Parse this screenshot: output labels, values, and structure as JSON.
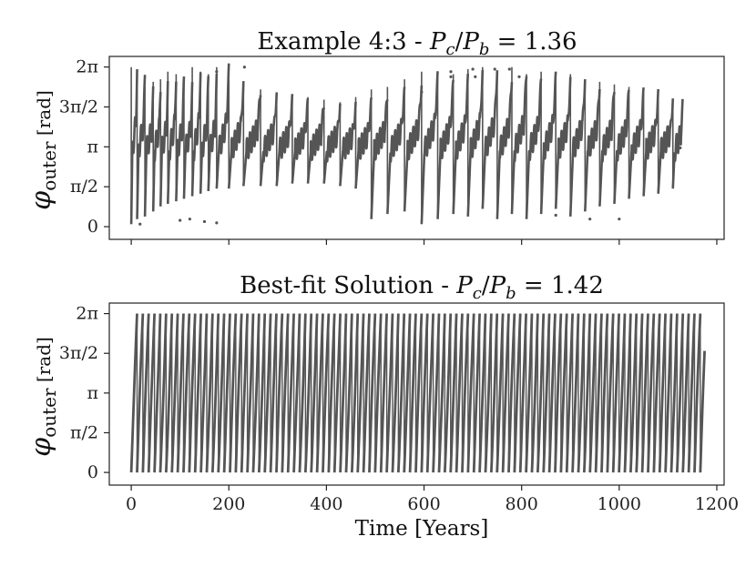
{
  "chart_data": [
    {
      "type": "scatter",
      "title_text": "Example 4:3 - ",
      "title_math": "P_c/P_b = 1.36",
      "title_symbol_1": "P",
      "title_sub_1": "c",
      "title_symbol_2": "P",
      "title_sub_2": "b",
      "title_value": " = 1.36",
      "ylabel_symbol": "φ",
      "ylabel_sub": "outer",
      "ylabel_unit": " [rad]",
      "xlim": [
        -45,
        1215
      ],
      "ylim": [
        -0.5,
        6.7
      ],
      "yticks": [
        0,
        1.5708,
        3.1416,
        4.7124,
        6.2832
      ],
      "yticklabels": [
        "0",
        "π/2",
        "π",
        "3π/2",
        "2π"
      ],
      "xticks": [
        0,
        200,
        400,
        600,
        800,
        1000,
        1200
      ],
      "show_xticklabels": false,
      "grid": false,
      "series": [
        {
          "color": "#555555",
          "t_end": 1130,
          "wrap_times": [
            0,
            12,
            28,
            45,
            60,
            75,
            92,
            108,
            125,
            142,
            158,
            175,
            200,
            230,
            265,
            298,
            330,
            362,
            395,
            428,
            460,
            492,
            525,
            560,
            595,
            628,
            660,
            690,
            720,
            750,
            780,
            810,
            840,
            870,
            900,
            930,
            960,
            990,
            1020,
            1050,
            1080,
            1110
          ],
          "wrap_bottoms": [
            0.1,
            0.3,
            0.4,
            0.6,
            0.8,
            0.9,
            1.0,
            1.1,
            1.2,
            1.3,
            1.4,
            1.5,
            1.5,
            1.6,
            1.6,
            1.6,
            1.7,
            1.7,
            1.7,
            1.6,
            1.5,
            0.3,
            0.5,
            0.6,
            0.1,
            0.3,
            0.5,
            0.4,
            0.7,
            0.3,
            0.5,
            0.3,
            0.5,
            0.7,
            0.4,
            0.6,
            0.8,
            0.9,
            1.1,
            1.2,
            1.3,
            1.5
          ],
          "wrap_tops": [
            6.28,
            6.0,
            5.3,
            5.5,
            5.6,
            5.9,
            5.8,
            5.5,
            6.2,
            5.9,
            5.8,
            6.2,
            5.6,
            5.4,
            5.2,
            5.0,
            4.9,
            4.9,
            4.8,
            4.7,
            4.9,
            5.2,
            5.3,
            5.6,
            5.9,
            5.7,
            5.8,
            6.0,
            6.2,
            5.9,
            6.1,
            5.8,
            5.9,
            5.7,
            5.8,
            5.6,
            5.5,
            5.4,
            5.3,
            5.2,
            5.0,
            4.8
          ],
          "mid_level": 3.0,
          "mid_amplitude": 0.45,
          "mid_period": 6.2,
          "outlier_points": [
            [
              18,
              0.1
            ],
            [
              100,
              0.25
            ],
            [
              120,
              0.3
            ],
            [
              150,
              0.2
            ],
            [
              175,
              0.15
            ],
            [
              175,
              6.1
            ],
            [
              232,
              6.28
            ],
            [
              595,
              5.3
            ],
            [
              655,
              6.1
            ],
            [
              655,
              5.9
            ],
            [
              700,
              6.2
            ],
            [
              705,
              5.9
            ],
            [
              745,
              6.2
            ],
            [
              775,
              6.2
            ],
            [
              795,
              5.9
            ],
            [
              870,
              0.45
            ],
            [
              940,
              0.3
            ],
            [
              1000,
              0.3
            ],
            [
              1125,
              3.1
            ]
          ]
        }
      ]
    },
    {
      "type": "scatter",
      "title_text": "Best-fit Solution - ",
      "title_math": "P_c/P_b = 1.42",
      "title_symbol_1": "P",
      "title_sub_1": "c",
      "title_symbol_2": "P",
      "title_sub_2": "b",
      "title_value": " = 1.42",
      "ylabel_symbol": "φ",
      "ylabel_sub": "outer",
      "ylabel_unit": " [rad]",
      "xlabel": "Time [Years]",
      "xlim": [
        -45,
        1215
      ],
      "ylim": [
        -0.5,
        6.7
      ],
      "yticks": [
        0,
        1.5708,
        3.1416,
        4.7124,
        6.2832
      ],
      "yticklabels": [
        "0",
        "π/2",
        "π",
        "3π/2",
        "2π"
      ],
      "xticks": [
        0,
        200,
        400,
        600,
        800,
        1000,
        1200
      ],
      "xticklabels": [
        "0",
        "200",
        "400",
        "600",
        "800",
        "1000",
        "1200"
      ],
      "show_xticklabels": true,
      "grid": false,
      "series": [
        {
          "color": "#555555",
          "t_end": 1175,
          "circulation_period": 11.9,
          "phase_min": 0.0,
          "phase_max": 6.2832,
          "libration_amplitude": 1.2,
          "libration_period": 95
        }
      ]
    }
  ]
}
